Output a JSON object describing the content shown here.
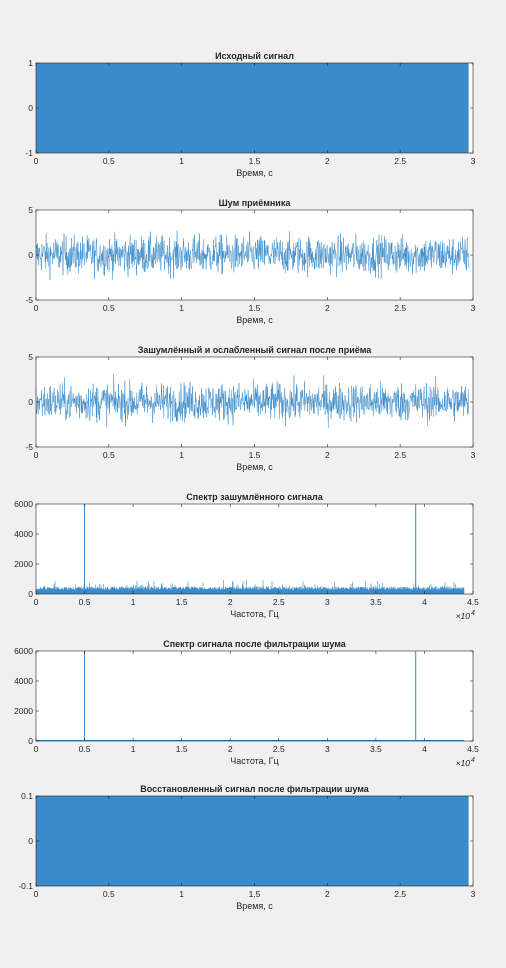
{
  "figure": {
    "background": "#f0f0f0",
    "axes_background": "#ffffff",
    "line_color": "#3a8bc9"
  },
  "chart_data": [
    {
      "type": "line",
      "title": "Исходный сигнал",
      "xlabel": "Время, с",
      "ylabel": "",
      "xlim": [
        0,
        3
      ],
      "ylim": [
        -1,
        1
      ],
      "xticks": [
        "0",
        "0.5",
        "1",
        "1.5",
        "2",
        "2.5",
        "3"
      ],
      "yticks": [
        "-1",
        "0",
        "1"
      ],
      "x_multiplier": "",
      "signal": {
        "kind": "dense",
        "x_end": 2.97,
        "ymin": -1,
        "ymax": 1
      }
    },
    {
      "type": "line",
      "title": "Шум приёмника",
      "xlabel": "Время, с",
      "ylabel": "",
      "xlim": [
        0,
        3
      ],
      "ylim": [
        -5,
        5
      ],
      "xticks": [
        "0",
        "0.5",
        "1",
        "1.5",
        "2",
        "2.5",
        "3"
      ],
      "yticks": [
        "-5",
        "0",
        "5"
      ],
      "x_multiplier": "",
      "signal": {
        "kind": "noise",
        "x_end": 2.97,
        "core": 2.2,
        "peak": 4.2
      }
    },
    {
      "type": "line",
      "title": "Зашумлённый и ослабленный сигнал после приёма",
      "xlabel": "Время, с",
      "ylabel": "",
      "xlim": [
        0,
        3
      ],
      "ylim": [
        -5,
        5
      ],
      "xticks": [
        "0",
        "0.5",
        "1",
        "1.5",
        "2",
        "2.5",
        "3"
      ],
      "yticks": [
        "-5",
        "0",
        "5"
      ],
      "x_multiplier": "",
      "signal": {
        "kind": "noise",
        "x_end": 2.97,
        "core": 2.2,
        "peak": 4.2
      }
    },
    {
      "type": "line",
      "title": "Спектр зашумлённого сигнала",
      "xlabel": "Частота, Гц",
      "ylabel": "",
      "xlim": [
        0,
        45000
      ],
      "ylim": [
        0,
        6500
      ],
      "xticks": [
        "0",
        "0.5",
        "1",
        "1.5",
        "2",
        "2.5",
        "3",
        "3.5",
        "4",
        "4.5"
      ],
      "yticks": [
        "0",
        "2000",
        "4000",
        "6000"
      ],
      "x_multiplier": "×10",
      "x_multiplier_exp": "4",
      "signal": {
        "kind": "spectrum",
        "x_end": 44100,
        "floor": 550,
        "floor_peak": 1000,
        "peaks": [
          5000,
          39100
        ],
        "peak_value": 6500
      }
    },
    {
      "type": "line",
      "title": "Спектр сигнала после фильтрации шума",
      "xlabel": "Частота, Гц",
      "ylabel": "",
      "xlim": [
        0,
        45000
      ],
      "ylim": [
        0,
        6500
      ],
      "xticks": [
        "0",
        "0.5",
        "1",
        "1.5",
        "2",
        "2.5",
        "3",
        "3.5",
        "4",
        "4.5"
      ],
      "yticks": [
        "0",
        "2000",
        "4000",
        "6000"
      ],
      "x_multiplier": "×10",
      "x_multiplier_exp": "4",
      "signal": {
        "kind": "spectrum",
        "x_end": 44100,
        "floor": 0,
        "floor_peak": 0,
        "peaks": [
          5000,
          39100
        ],
        "peak_value": 6500
      }
    },
    {
      "type": "line",
      "title": "Восстановленный сигнал после фильтрации шума",
      "xlabel": "Время, с",
      "ylabel": "",
      "xlim": [
        0,
        3
      ],
      "ylim": [
        -0.1,
        0.1
      ],
      "xticks": [
        "0",
        "0.5",
        "1",
        "1.5",
        "2",
        "2.5",
        "3"
      ],
      "yticks": [
        "-0.1",
        "0",
        "0.1"
      ],
      "x_multiplier": "",
      "signal": {
        "kind": "dense",
        "x_end": 2.97,
        "ymin": -0.1,
        "ymax": 0.1
      }
    }
  ]
}
